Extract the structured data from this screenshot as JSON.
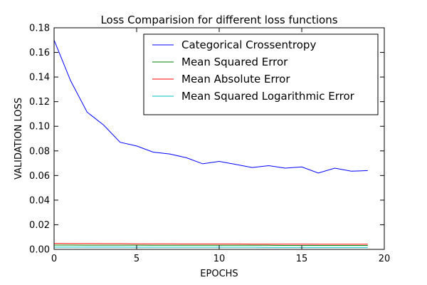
{
  "chart_data": {
    "type": "line",
    "title": "Loss Comparision for different loss functions",
    "xlabel": "EPOCHS",
    "ylabel": "VALIDATION LOSS",
    "xlim": [
      0,
      20
    ],
    "ylim": [
      0,
      0.18
    ],
    "xticks": [
      0,
      5,
      10,
      15,
      20
    ],
    "xtick_labels": [
      "0",
      "5",
      "10",
      "15",
      "20"
    ],
    "yticks": [
      0.0,
      0.02,
      0.04,
      0.06,
      0.08,
      0.1,
      0.12,
      0.14,
      0.16,
      0.18
    ],
    "ytick_labels": [
      "0.00",
      "0.02",
      "0.04",
      "0.06",
      "0.08",
      "0.10",
      "0.12",
      "0.14",
      "0.16",
      "0.18"
    ],
    "grid": false,
    "legend_position": "top-right",
    "x": [
      0,
      1,
      2,
      3,
      4,
      5,
      6,
      7,
      8,
      9,
      10,
      11,
      12,
      13,
      14,
      15,
      16,
      17,
      18,
      19
    ],
    "series": [
      {
        "name": "Categorical Crossentropy",
        "color": "#0000ff",
        "values": [
          0.17,
          0.137,
          0.1115,
          0.101,
          0.087,
          0.084,
          0.079,
          0.0775,
          0.0745,
          0.0695,
          0.0715,
          0.069,
          0.0665,
          0.068,
          0.066,
          0.067,
          0.062,
          0.066,
          0.0635,
          0.064
        ]
      },
      {
        "name": "Mean Squared Error",
        "color": "#008000",
        "values": [
          0.0035,
          0.0035,
          0.0034,
          0.0034,
          0.0034,
          0.0034,
          0.0033,
          0.0033,
          0.0033,
          0.0033,
          0.0033,
          0.0033,
          0.0033,
          0.0033,
          0.0032,
          0.0032,
          0.0032,
          0.0032,
          0.0032,
          0.0032
        ]
      },
      {
        "name": "Mean Absolute Error",
        "color": "#ff0000",
        "values": [
          0.0048,
          0.0047,
          0.0047,
          0.0046,
          0.0046,
          0.0045,
          0.0045,
          0.0045,
          0.0044,
          0.0044,
          0.0044,
          0.0044,
          0.0043,
          0.0043,
          0.0043,
          0.0043,
          0.0042,
          0.0042,
          0.0042,
          0.0042
        ]
      },
      {
        "name": "Mean Squared Logarithmic Error",
        "color": "#00bfbf",
        "values": [
          0.0018,
          0.0018,
          0.0018,
          0.0018,
          0.0018,
          0.0017,
          0.0017,
          0.0017,
          0.0017,
          0.0017,
          0.0017,
          0.0017,
          0.0017,
          0.0016,
          0.0016,
          0.0016,
          0.0016,
          0.0016,
          0.0016,
          0.0016
        ]
      }
    ]
  }
}
